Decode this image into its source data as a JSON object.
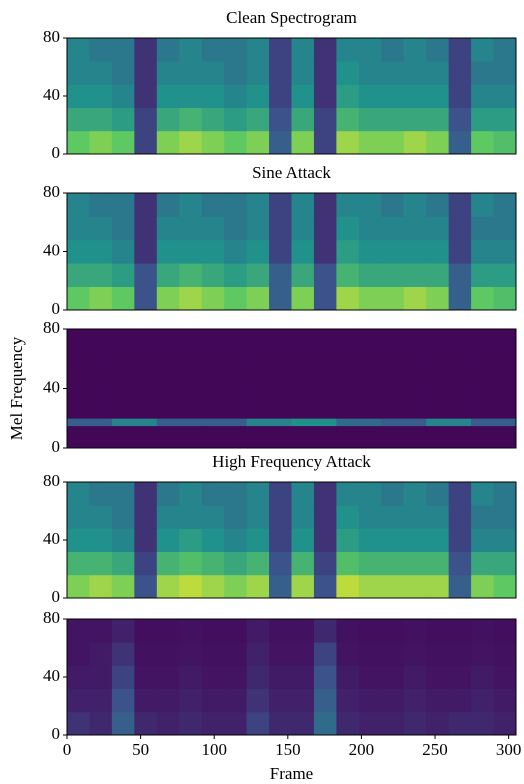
{
  "chart_data": [
    {
      "type": "heatmap",
      "title": "Clean Spectrogram",
      "colormap": "viridis",
      "zlim": [
        0,
        1
      ],
      "xlim": [
        0,
        305
      ],
      "ylim": [
        0,
        80
      ],
      "yticks": [
        0,
        40,
        80
      ],
      "z": [
        [
          0.75,
          0.8,
          0.75,
          0.2,
          0.8,
          0.85,
          0.8,
          0.75,
          0.8,
          0.3,
          0.8,
          0.2,
          0.85,
          0.8,
          0.8,
          0.85,
          0.8,
          0.3,
          0.75,
          0.7
        ],
        [
          0.6,
          0.6,
          0.55,
          0.2,
          0.6,
          0.65,
          0.6,
          0.55,
          0.6,
          0.25,
          0.6,
          0.2,
          0.65,
          0.6,
          0.6,
          0.6,
          0.6,
          0.25,
          0.55,
          0.55
        ],
        [
          0.5,
          0.5,
          0.45,
          0.15,
          0.5,
          0.5,
          0.5,
          0.45,
          0.5,
          0.2,
          0.5,
          0.15,
          0.55,
          0.5,
          0.5,
          0.5,
          0.5,
          0.2,
          0.45,
          0.45
        ],
        [
          0.45,
          0.45,
          0.4,
          0.15,
          0.45,
          0.45,
          0.45,
          0.4,
          0.45,
          0.2,
          0.45,
          0.15,
          0.5,
          0.45,
          0.45,
          0.45,
          0.45,
          0.2,
          0.4,
          0.4
        ],
        [
          0.45,
          0.4,
          0.4,
          0.15,
          0.4,
          0.45,
          0.4,
          0.4,
          0.45,
          0.2,
          0.45,
          0.15,
          0.45,
          0.45,
          0.4,
          0.45,
          0.4,
          0.2,
          0.45,
          0.4
        ]
      ]
    },
    {
      "type": "heatmap",
      "title": "Sine Attack",
      "colormap": "viridis",
      "zlim": [
        0,
        1
      ],
      "xlim": [
        0,
        305
      ],
      "ylim": [
        0,
        80
      ],
      "yticks": [
        0,
        40,
        80
      ],
      "z": [
        [
          0.75,
          0.8,
          0.75,
          0.25,
          0.8,
          0.85,
          0.8,
          0.75,
          0.8,
          0.3,
          0.8,
          0.25,
          0.85,
          0.8,
          0.8,
          0.85,
          0.8,
          0.3,
          0.75,
          0.7
        ],
        [
          0.6,
          0.6,
          0.55,
          0.25,
          0.6,
          0.65,
          0.6,
          0.55,
          0.6,
          0.3,
          0.6,
          0.25,
          0.65,
          0.6,
          0.6,
          0.6,
          0.6,
          0.3,
          0.55,
          0.55
        ],
        [
          0.5,
          0.5,
          0.45,
          0.15,
          0.5,
          0.5,
          0.5,
          0.45,
          0.5,
          0.2,
          0.5,
          0.15,
          0.55,
          0.5,
          0.5,
          0.5,
          0.5,
          0.2,
          0.45,
          0.45
        ],
        [
          0.45,
          0.45,
          0.4,
          0.15,
          0.45,
          0.45,
          0.45,
          0.4,
          0.45,
          0.2,
          0.45,
          0.15,
          0.5,
          0.45,
          0.45,
          0.45,
          0.45,
          0.2,
          0.4,
          0.4
        ],
        [
          0.45,
          0.4,
          0.4,
          0.15,
          0.4,
          0.45,
          0.4,
          0.4,
          0.45,
          0.2,
          0.45,
          0.15,
          0.45,
          0.45,
          0.4,
          0.45,
          0.4,
          0.2,
          0.45,
          0.4
        ]
      ]
    },
    {
      "type": "heatmap",
      "ylabel": "Mel Frequency",
      "colormap": "viridis",
      "zlim": [
        0,
        1
      ],
      "xlim": [
        0,
        305
      ],
      "ylim": [
        0,
        80
      ],
      "yticks": [
        0,
        40,
        80
      ],
      "z": [
        [
          0.02,
          0.02,
          0.02,
          0.02,
          0.02,
          0.02,
          0.02,
          0.02,
          0.02,
          0.02
        ],
        [
          0.02,
          0.02,
          0.02,
          0.02,
          0.02,
          0.02,
          0.02,
          0.02,
          0.02,
          0.02
        ],
        [
          0.02,
          0.02,
          0.02,
          0.02,
          0.02,
          0.02,
          0.02,
          0.02,
          0.02,
          0.02
        ],
        [
          0.3,
          0.45,
          0.3,
          0.3,
          0.45,
          0.5,
          0.35,
          0.3,
          0.45,
          0.3
        ],
        [
          0.02,
          0.02,
          0.02,
          0.02,
          0.02,
          0.02,
          0.02,
          0.02,
          0.02,
          0.02
        ],
        [
          0.02,
          0.02,
          0.02,
          0.02,
          0.02,
          0.02,
          0.02,
          0.02,
          0.02,
          0.02
        ],
        [
          0.02,
          0.02,
          0.02,
          0.02,
          0.02,
          0.02,
          0.02,
          0.02,
          0.02,
          0.02
        ],
        [
          0.02,
          0.02,
          0.02,
          0.02,
          0.02,
          0.02,
          0.02,
          0.02,
          0.02,
          0.02
        ],
        [
          0.02,
          0.02,
          0.02,
          0.02,
          0.02,
          0.02,
          0.02,
          0.02,
          0.02,
          0.02
        ],
        [
          0.02,
          0.02,
          0.02,
          0.02,
          0.02,
          0.02,
          0.02,
          0.02,
          0.02,
          0.02
        ],
        [
          0.02,
          0.02,
          0.02,
          0.02,
          0.02,
          0.02,
          0.02,
          0.02,
          0.02,
          0.02
        ],
        [
          0.02,
          0.02,
          0.02,
          0.02,
          0.02,
          0.02,
          0.02,
          0.02,
          0.02,
          0.02
        ],
        [
          0.02,
          0.02,
          0.02,
          0.02,
          0.02,
          0.02,
          0.02,
          0.02,
          0.02,
          0.02
        ],
        [
          0.02,
          0.02,
          0.02,
          0.02,
          0.02,
          0.02,
          0.02,
          0.02,
          0.02,
          0.02
        ],
        [
          0.02,
          0.02,
          0.02,
          0.02,
          0.02,
          0.02,
          0.02,
          0.02,
          0.02,
          0.02
        ],
        [
          0.02,
          0.02,
          0.02,
          0.02,
          0.02,
          0.02,
          0.02,
          0.02,
          0.02,
          0.02
        ]
      ]
    },
    {
      "type": "heatmap",
      "title": "High Frequency Attack",
      "colormap": "viridis",
      "zlim": [
        0,
        1
      ],
      "xlim": [
        0,
        305
      ],
      "ylim": [
        0,
        80
      ],
      "yticks": [
        0,
        40,
        80
      ],
      "z": [
        [
          0.8,
          0.85,
          0.8,
          0.25,
          0.85,
          0.9,
          0.85,
          0.8,
          0.85,
          0.3,
          0.85,
          0.25,
          0.9,
          0.85,
          0.85,
          0.85,
          0.85,
          0.3,
          0.8,
          0.75
        ],
        [
          0.65,
          0.65,
          0.6,
          0.2,
          0.65,
          0.7,
          0.65,
          0.6,
          0.65,
          0.25,
          0.65,
          0.2,
          0.7,
          0.65,
          0.65,
          0.65,
          0.65,
          0.25,
          0.6,
          0.6
        ],
        [
          0.5,
          0.5,
          0.45,
          0.15,
          0.5,
          0.55,
          0.5,
          0.45,
          0.5,
          0.2,
          0.5,
          0.15,
          0.55,
          0.5,
          0.5,
          0.5,
          0.5,
          0.2,
          0.45,
          0.45
        ],
        [
          0.45,
          0.45,
          0.4,
          0.15,
          0.45,
          0.45,
          0.45,
          0.4,
          0.45,
          0.2,
          0.45,
          0.15,
          0.5,
          0.45,
          0.45,
          0.45,
          0.45,
          0.2,
          0.4,
          0.4
        ],
        [
          0.45,
          0.4,
          0.4,
          0.15,
          0.4,
          0.45,
          0.4,
          0.4,
          0.45,
          0.2,
          0.45,
          0.15,
          0.45,
          0.45,
          0.4,
          0.45,
          0.4,
          0.2,
          0.45,
          0.4
        ]
      ]
    },
    {
      "type": "heatmap",
      "xlabel": "Frame",
      "colormap": "viridis",
      "zlim": [
        0,
        1
      ],
      "xlim": [
        0,
        305
      ],
      "ylim": [
        0,
        80
      ],
      "yticks": [
        0,
        40,
        80
      ],
      "xticks": [
        0,
        50,
        100,
        150,
        200,
        250,
        300
      ],
      "z": [
        [
          0.15,
          0.12,
          0.3,
          0.12,
          0.1,
          0.12,
          0.1,
          0.1,
          0.2,
          0.12,
          0.12,
          0.35,
          0.12,
          0.1,
          0.1,
          0.12,
          0.1,
          0.12,
          0.12,
          0.1
        ],
        [
          0.1,
          0.1,
          0.25,
          0.08,
          0.08,
          0.1,
          0.08,
          0.08,
          0.15,
          0.1,
          0.1,
          0.3,
          0.1,
          0.08,
          0.08,
          0.1,
          0.08,
          0.08,
          0.1,
          0.08
        ],
        [
          0.08,
          0.08,
          0.2,
          0.06,
          0.06,
          0.08,
          0.06,
          0.06,
          0.12,
          0.08,
          0.08,
          0.25,
          0.08,
          0.06,
          0.06,
          0.08,
          0.06,
          0.06,
          0.08,
          0.06
        ],
        [
          0.06,
          0.08,
          0.15,
          0.05,
          0.05,
          0.06,
          0.05,
          0.05,
          0.1,
          0.06,
          0.06,
          0.2,
          0.06,
          0.05,
          0.05,
          0.06,
          0.05,
          0.05,
          0.06,
          0.05
        ],
        [
          0.06,
          0.06,
          0.1,
          0.04,
          0.04,
          0.05,
          0.04,
          0.04,
          0.08,
          0.05,
          0.05,
          0.12,
          0.05,
          0.04,
          0.04,
          0.05,
          0.04,
          0.04,
          0.05,
          0.04
        ]
      ]
    }
  ]
}
